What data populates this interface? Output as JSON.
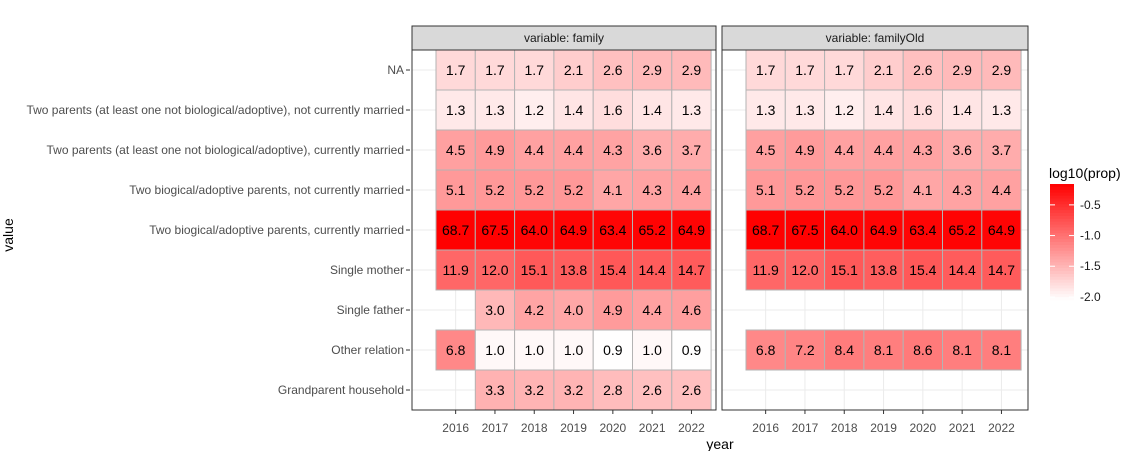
{
  "chart_data": {
    "type": "heatmap",
    "xlabel": "year",
    "ylabel": "value",
    "years": [
      "2016",
      "2017",
      "2018",
      "2019",
      "2020",
      "2021",
      "2022"
    ],
    "rows": [
      "NA",
      "Two parents (at least one not biological/adoptive), not currently married",
      "Two parents (at least one not biological/adoptive), currently married",
      "Two biogical/adoptive parents, not currently married",
      "Two biogical/adoptive parents, currently married",
      "Single mother",
      "Single father",
      "Other relation",
      "Grandparent household"
    ],
    "facets": [
      {
        "strip": "variable: family",
        "values": [
          [
            "1.7",
            "1.7",
            "1.7",
            "2.1",
            "2.6",
            "2.9",
            "2.9"
          ],
          [
            "1.3",
            "1.3",
            "1.2",
            "1.4",
            "1.6",
            "1.4",
            "1.3"
          ],
          [
            "4.5",
            "4.9",
            "4.4",
            "4.4",
            "4.3",
            "3.6",
            "3.7"
          ],
          [
            "5.1",
            "5.2",
            "5.2",
            "5.2",
            "4.1",
            "4.3",
            "4.4"
          ],
          [
            "68.7",
            "67.5",
            "64.0",
            "64.9",
            "63.4",
            "65.2",
            "64.9"
          ],
          [
            "11.9",
            "12.0",
            "15.1",
            "13.8",
            "15.4",
            "14.4",
            "14.7"
          ],
          [
            null,
            "3.0",
            "4.2",
            "4.0",
            "4.9",
            "4.4",
            "4.6"
          ],
          [
            "6.8",
            "1.0",
            "1.0",
            "1.0",
            "0.9",
            "1.0",
            "0.9"
          ],
          [
            null,
            "3.3",
            "3.2",
            "3.2",
            "2.8",
            "2.6",
            "2.6"
          ]
        ]
      },
      {
        "strip": "variable: familyOld",
        "values": [
          [
            "1.7",
            "1.7",
            "1.7",
            "2.1",
            "2.6",
            "2.9",
            "2.9"
          ],
          [
            "1.3",
            "1.3",
            "1.2",
            "1.4",
            "1.6",
            "1.4",
            "1.3"
          ],
          [
            "4.5",
            "4.9",
            "4.4",
            "4.4",
            "4.3",
            "3.6",
            "3.7"
          ],
          [
            "5.1",
            "5.2",
            "5.2",
            "5.2",
            "4.1",
            "4.3",
            "4.4"
          ],
          [
            "68.7",
            "67.5",
            "64.0",
            "64.9",
            "63.4",
            "65.2",
            "64.9"
          ],
          [
            "11.9",
            "12.0",
            "15.1",
            "13.8",
            "15.4",
            "14.4",
            "14.7"
          ],
          [
            null,
            null,
            null,
            null,
            null,
            null,
            null
          ],
          [
            "6.8",
            "7.2",
            "8.4",
            "8.1",
            "8.6",
            "8.1",
            "8.1"
          ],
          [
            null,
            null,
            null,
            null,
            null,
            null,
            null
          ]
        ]
      }
    ],
    "legend": {
      "title": "log10(prop)",
      "ticks": [
        "-0.5",
        "-1.0",
        "-1.5",
        "-2.0"
      ],
      "tick_values": [
        -0.5,
        -1.0,
        -1.5,
        -2.0
      ],
      "range": [
        -2.05,
        -0.16
      ],
      "low_color": "#ffffff",
      "high_color": "#ff0000",
      "placement": "right"
    },
    "colors": {
      "strip_fill": "#d9d9d9",
      "cell_border": "#b3b3b3",
      "grid": "#ebebeb"
    },
    "grid": true
  }
}
